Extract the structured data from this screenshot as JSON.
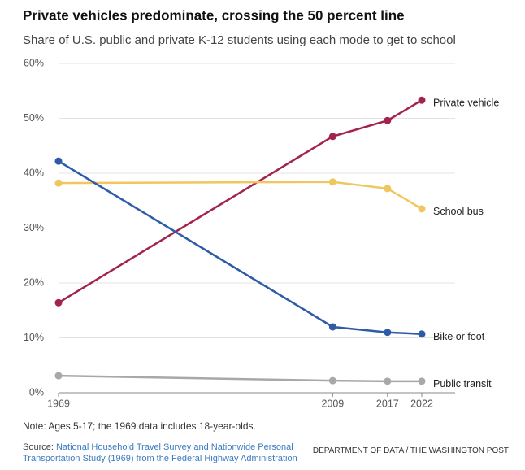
{
  "chart_data": {
    "type": "line",
    "title": "Private vehicles predominate, crossing the 50 percent line",
    "subtitle": "Share of U.S. public and private K-12 students using each mode to get to school",
    "x": [
      1969,
      2009,
      2017,
      2022
    ],
    "xlim": [
      1969,
      2022
    ],
    "xticks": [
      1969,
      2009,
      2017,
      2022
    ],
    "ylim": [
      0,
      60
    ],
    "yticks": [
      {
        "value": 0,
        "label": "0%"
      },
      {
        "value": 10,
        "label": "10%"
      },
      {
        "value": 20,
        "label": "20%"
      },
      {
        "value": 30,
        "label": "30%"
      },
      {
        "value": 40,
        "label": "40%"
      },
      {
        "value": 50,
        "label": "50%"
      },
      {
        "value": 60,
        "label": "60%"
      }
    ],
    "grid": true,
    "series": [
      {
        "name": "Private vehicle",
        "color": "#a3234f",
        "values": [
          16.4,
          46.7,
          49.6,
          53.3
        ]
      },
      {
        "name": "School bus",
        "color": "#f0c75e",
        "values": [
          38.2,
          38.4,
          37.2,
          33.5
        ]
      },
      {
        "name": "Bike or foot",
        "color": "#2e5aa8",
        "values": [
          42.2,
          12.0,
          11.0,
          10.7
        ]
      },
      {
        "name": "Public transit",
        "color": "#a8a8a8",
        "values": [
          3.1,
          2.2,
          2.1,
          2.1
        ]
      }
    ],
    "note": "Note: Ages 5-17; the 1969 data includes 18-year-olds.",
    "source_label": "Source:",
    "source_text": "National Household Travel Survey and Nationwide Personal Transportation Study (1969) from the Federal Highway Administration",
    "credit": "DEPARTMENT OF DATA / THE WASHINGTON POST"
  }
}
